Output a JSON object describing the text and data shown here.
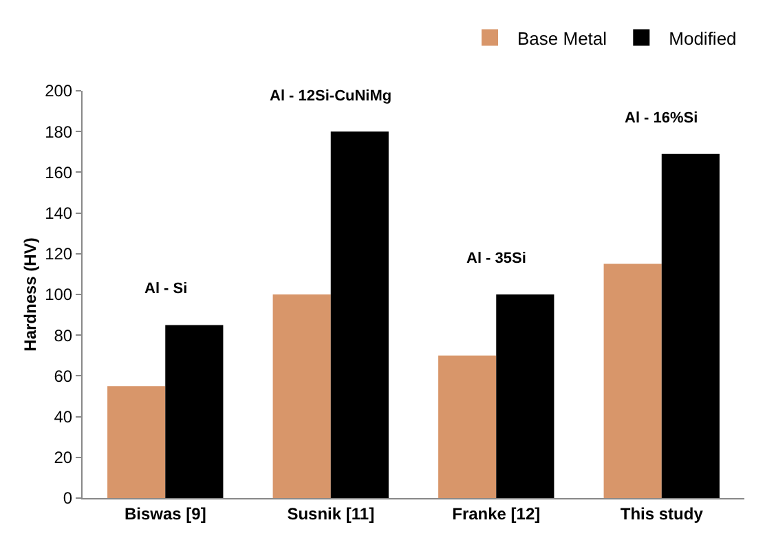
{
  "chart_data": {
    "type": "bar",
    "ylabel": "Hardness (HV)",
    "categories": [
      "Biswas [9]",
      "Susnik [11]",
      "Franke [12]",
      "This study"
    ],
    "series": [
      {
        "name": "Base Metal",
        "color": "#d8966a",
        "values": [
          55,
          100,
          70,
          115
        ]
      },
      {
        "name": "Modified",
        "color": "#000000",
        "values": [
          85,
          180,
          100,
          169
        ]
      }
    ],
    "ylim": [
      0,
      200
    ],
    "yticks": [
      0,
      20,
      40,
      60,
      80,
      100,
      120,
      140,
      160,
      180,
      200
    ],
    "annotations": [
      "Al - Si",
      "Al - 12Si-CuNiMg",
      "Al - 35Si",
      "Al - 16%Si"
    ],
    "grid": false,
    "legend": "top right"
  }
}
